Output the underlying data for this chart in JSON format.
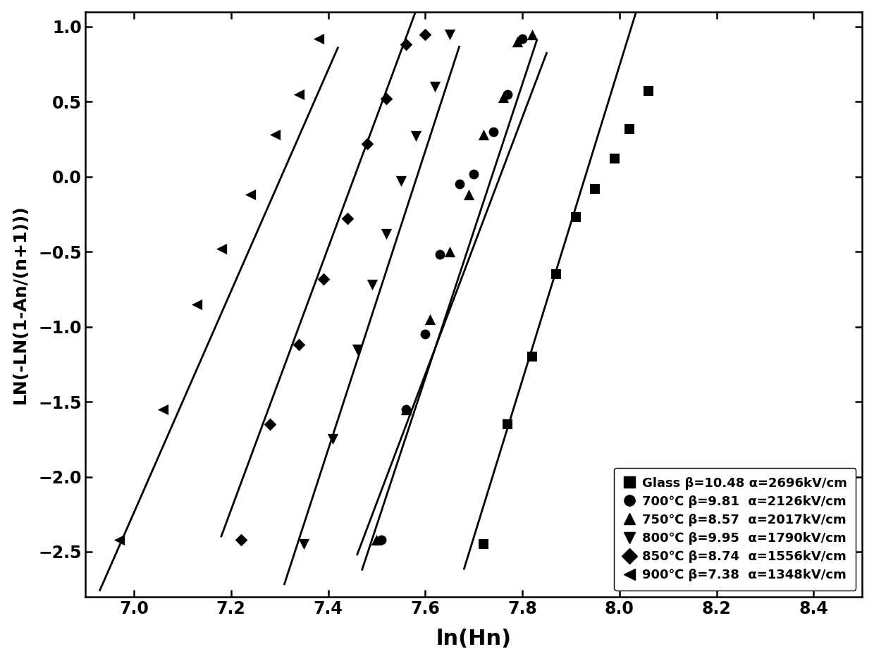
{
  "title": "",
  "xlabel": "ln(Hn)",
  "ylabel": "LN(-LN(1-An/(n+1)))",
  "xlim": [
    6.9,
    8.5
  ],
  "ylim": [
    -2.8,
    1.1
  ],
  "xticks": [
    7.0,
    7.2,
    7.4,
    7.6,
    7.8,
    8.0,
    8.2,
    8.4
  ],
  "yticks": [
    -2.5,
    -2.0,
    -1.5,
    -1.0,
    -0.5,
    0.0,
    0.5,
    1.0
  ],
  "series": [
    {
      "label": "Glass β=10.48 α=2696kV/cm",
      "marker": "s",
      "color": "black",
      "x": [
        7.72,
        7.77,
        7.82,
        7.87,
        7.91,
        7.95,
        7.99,
        8.02,
        8.06
      ],
      "y": [
        -2.45,
        -1.65,
        -1.2,
        -0.65,
        -0.27,
        -0.08,
        0.12,
        0.32,
        0.57
      ],
      "fit_x": [
        7.68,
        8.07
      ],
      "fit_slope": 10.48,
      "fit_intercept": -83.1
    },
    {
      "label": "700℃ β=9.81  α=2126kV/cm",
      "marker": "o",
      "color": "black",
      "x": [
        7.51,
        7.56,
        7.6,
        7.63,
        7.67,
        7.7,
        7.74,
        7.77,
        7.8
      ],
      "y": [
        -2.42,
        -1.55,
        -1.05,
        -0.52,
        -0.05,
        0.02,
        0.3,
        0.55,
        0.92
      ],
      "fit_x": [
        7.47,
        7.83
      ],
      "fit_slope": 9.81,
      "fit_intercept": -75.9
    },
    {
      "label": "750℃ β=8.57  α=2017kV/cm",
      "marker": "^",
      "color": "black",
      "x": [
        7.5,
        7.56,
        7.61,
        7.65,
        7.69,
        7.72,
        7.76,
        7.79,
        7.82
      ],
      "y": [
        -2.42,
        -1.55,
        -0.95,
        -0.5,
        -0.12,
        0.28,
        0.53,
        0.9,
        0.95
      ],
      "fit_x": [
        7.46,
        7.85
      ],
      "fit_slope": 8.57,
      "fit_intercept": -66.45
    },
    {
      "label": "800℃ β=9.95  α=1790kV/cm",
      "marker": "v",
      "color": "black",
      "x": [
        7.35,
        7.41,
        7.46,
        7.49,
        7.52,
        7.55,
        7.58,
        7.62,
        7.65
      ],
      "y": [
        -2.45,
        -1.75,
        -1.15,
        -0.72,
        -0.38,
        -0.03,
        0.27,
        0.6,
        0.95
      ],
      "fit_x": [
        7.31,
        7.67
      ],
      "fit_slope": 9.95,
      "fit_intercept": -75.45
    },
    {
      "label": "850℃ β=8.74  α=1556kV/cm",
      "marker": "D",
      "color": "black",
      "x": [
        7.22,
        7.28,
        7.34,
        7.39,
        7.44,
        7.48,
        7.52,
        7.56,
        7.6
      ],
      "y": [
        -2.42,
        -1.65,
        -1.12,
        -0.68,
        -0.28,
        0.22,
        0.52,
        0.88,
        0.95
      ],
      "fit_x": [
        7.18,
        7.62
      ],
      "fit_slope": 8.74,
      "fit_intercept": -65.15
    },
    {
      "label": "900℃ β=7.38  α=1348kV/cm",
      "marker": "left",
      "color": "black",
      "x": [
        6.97,
        7.06,
        7.13,
        7.18,
        7.24,
        7.29,
        7.34,
        7.38
      ],
      "y": [
        -2.42,
        -1.55,
        -0.85,
        -0.48,
        -0.12,
        0.28,
        0.55,
        0.92
      ],
      "fit_x": [
        6.93,
        7.42
      ],
      "fit_slope": 7.38,
      "fit_intercept": -53.9
    }
  ],
  "figsize": [
    12.4,
    9.38
  ],
  "dpi": 100
}
